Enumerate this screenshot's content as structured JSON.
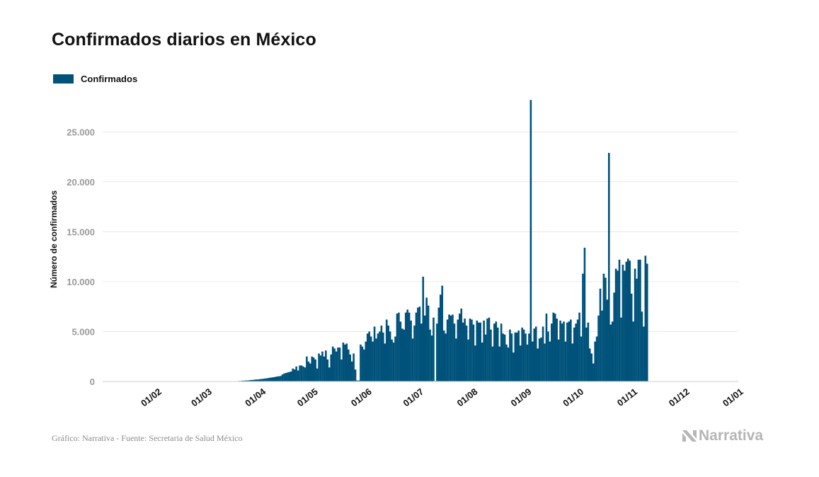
{
  "title": "Confirmados diarios en México",
  "legend": {
    "label": "Confirmados",
    "color": "#00527a"
  },
  "footer": "Gráfico: Narrativa - Fuente: Secretaria de Salud México",
  "brand": "Narrativa",
  "brand_icon": "narrativa-logo-icon",
  "chart_data": {
    "type": "bar",
    "title": "Confirmados diarios en México",
    "xlabel": "",
    "ylabel": "Número de confirmados",
    "x_axis": {
      "type": "date",
      "range": [
        "2020-01-01",
        "2021-01-01"
      ]
    },
    "ylim": [
      0,
      29000
    ],
    "yticks": [
      0,
      5000,
      10000,
      15000,
      20000,
      25000
    ],
    "ytick_labels": [
      "0",
      "5.000",
      "10.000",
      "15.000",
      "20.000",
      "25.000"
    ],
    "xticks": [
      "2020-02-01",
      "2020-03-01",
      "2020-04-01",
      "2020-05-01",
      "2020-06-01",
      "2020-07-01",
      "2020-08-01",
      "2020-09-01",
      "2020-10-01",
      "2020-11-01",
      "2020-12-01",
      "2021-01-01"
    ],
    "xtick_labels": [
      "01/02",
      "01/03",
      "01/04",
      "01/05",
      "01/06",
      "01/07",
      "01/08",
      "01/09",
      "01/10",
      "01/11",
      "01/12",
      "01/01"
    ],
    "grid": true,
    "legend_position": "top-left",
    "series": [
      {
        "name": "Confirmados",
        "color": "#00527a",
        "start_date": "2020-01-13",
        "values": [
          10,
          10,
          10,
          10,
          10,
          10,
          10,
          10,
          10,
          10,
          10,
          10,
          10,
          10,
          10,
          10,
          10,
          10,
          10,
          10,
          10,
          10,
          10,
          10,
          10,
          10,
          10,
          10,
          10,
          10,
          10,
          10,
          10,
          10,
          10,
          10,
          10,
          10,
          10,
          10,
          10,
          10,
          10,
          10,
          10,
          10,
          10,
          10,
          10,
          10,
          10,
          10,
          10,
          10,
          10,
          10,
          10,
          10,
          10,
          10,
          10,
          10,
          10,
          10,
          10,
          10,
          50,
          50,
          80,
          80,
          100,
          100,
          120,
          150,
          150,
          180,
          200,
          200,
          230,
          250,
          270,
          300,
          320,
          350,
          380,
          400,
          430,
          460,
          500,
          520,
          550,
          700,
          800,
          850,
          900,
          950,
          1000,
          1300,
          1200,
          1500,
          1100,
          1600,
          1600,
          1500,
          1400,
          2500,
          2000,
          1800,
          2500,
          2400,
          2200,
          1300,
          2800,
          2600,
          3000,
          2500,
          3100,
          2200,
          1400,
          2700,
          3500,
          3300,
          3000,
          3400,
          3400,
          2200,
          3900,
          3700,
          3800,
          3200,
          2700,
          2000,
          2800,
          1200,
          100,
          100,
          3700,
          3500,
          3200,
          4000,
          4800,
          5000,
          4500,
          4000,
          5500,
          4300,
          4800,
          5000,
          5600,
          4900,
          3800,
          6200,
          5600,
          5000,
          4200,
          3900,
          4500,
          6800,
          6900,
          6000,
          5300,
          5200,
          6900,
          7200,
          6900,
          6100,
          4300,
          5600,
          6900,
          7400,
          7500,
          5800,
          10500,
          6600,
          8400,
          7600,
          5200,
          4600,
          6400,
          50,
          5800,
          7400,
          8700,
          9600,
          5100,
          4800,
          6200,
          6700,
          6600,
          6700,
          5800,
          4300,
          6200,
          6800,
          7300,
          5900,
          6300,
          5600,
          4200,
          6300,
          6200,
          5700,
          3600,
          6100,
          5900,
          5900,
          3900,
          6100,
          4700,
          6300,
          6400,
          5200,
          3500,
          5800,
          6000,
          5400,
          3500,
          5800,
          4800,
          4700,
          3700,
          3400,
          5200,
          4800,
          2900,
          4900,
          4900,
          5100,
          3600,
          5400,
          5200,
          4800,
          3700,
          4800,
          28200,
          4000,
          5300,
          5500,
          3300,
          4300,
          4400,
          5500,
          3800,
          6800,
          5000,
          4000,
          5800,
          6900,
          6800,
          6300,
          4200,
          6100,
          5800,
          6000,
          4000,
          5900,
          6000,
          6200,
          3800,
          5400,
          5800,
          6200,
          6900,
          4500,
          10800,
          13400,
          5400,
          5900,
          3300,
          2800,
          1800,
          4000,
          4500,
          6600,
          9300,
          7100,
          10800,
          10400,
          8200,
          22900,
          5700,
          6000,
          8900,
          11300,
          11100,
          12200,
          6400,
          11700,
          11100,
          12000,
          12300,
          12100,
          8800,
          6000,
          11300,
          10300,
          12200,
          12200,
          7000,
          5500,
          12600,
          11800
        ]
      }
    ]
  }
}
